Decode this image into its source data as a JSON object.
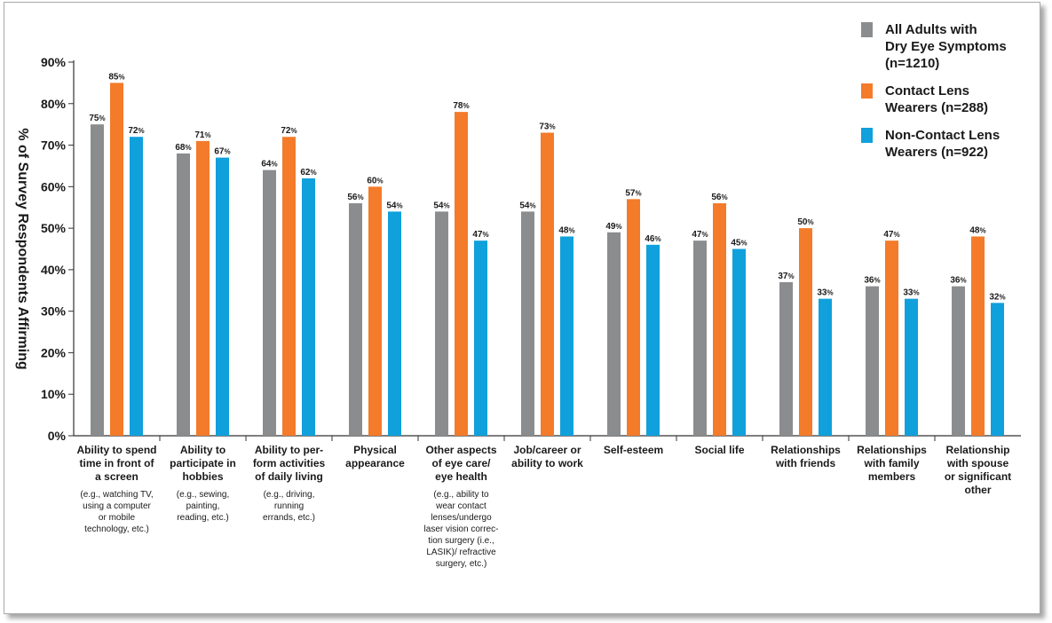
{
  "chart_data": {
    "type": "bar",
    "ylabel": "% of Survey Respondents Affirming",
    "ylim": [
      0,
      90
    ],
    "y_ticks": [
      "0%",
      "10%",
      "20%",
      "30%",
      "40%",
      "50%",
      "60%",
      "70%",
      "80%",
      "90%"
    ],
    "grid": false,
    "legend_position": "top-right",
    "categories": [
      {
        "label": [
          "Ability to spend",
          "time in front of",
          "a screen"
        ],
        "note": [
          "(e.g., watching TV,",
          "using a computer",
          "or mobile",
          "technology, etc.)"
        ]
      },
      {
        "label": [
          "Ability to",
          "participate in",
          "hobbies"
        ],
        "note": [
          "(e.g., sewing,",
          "painting,",
          "reading, etc.)"
        ]
      },
      {
        "label": [
          "Ability to per-",
          "form activities",
          "of daily living"
        ],
        "note": [
          "(e.g., driving,",
          "running",
          "errands, etc.)"
        ]
      },
      {
        "label": [
          "Physical",
          "appearance"
        ],
        "note": []
      },
      {
        "label": [
          "Other aspects",
          "of eye care/",
          "eye health"
        ],
        "note": [
          "(e.g., ability to",
          "wear contact",
          "lenses/undergo",
          "laser vision correc-",
          "tion surgery (i.e.,",
          "LASIK)/ refractive",
          "surgery, etc.)"
        ]
      },
      {
        "label": [
          "Job/career or",
          "ability to work"
        ],
        "note": []
      },
      {
        "label": [
          "Self-esteem"
        ],
        "note": []
      },
      {
        "label": [
          "Social life"
        ],
        "note": []
      },
      {
        "label": [
          "Relationships",
          "with friends"
        ],
        "note": []
      },
      {
        "label": [
          "Relationships",
          "with family",
          "members"
        ],
        "note": []
      },
      {
        "label": [
          "Relationship",
          "with spouse",
          "or significant",
          "other"
        ],
        "note": []
      }
    ],
    "series": [
      {
        "name": [
          "All Adults with",
          "Dry Eye Symptoms",
          "(n=1210)"
        ],
        "color": "#8a8c8e",
        "values": [
          75,
          68,
          64,
          56,
          54,
          54,
          49,
          47,
          37,
          36,
          36
        ]
      },
      {
        "name": [
          "Contact Lens",
          "Wearers (n=288)"
        ],
        "color": "#f37b2a",
        "values": [
          85,
          71,
          72,
          60,
          78,
          73,
          57,
          56,
          50,
          47,
          48
        ]
      },
      {
        "name": [
          "Non-Contact Lens",
          "Wearers (n=922)"
        ],
        "color": "#10a0dc",
        "values": [
          72,
          67,
          62,
          54,
          47,
          48,
          46,
          45,
          33,
          33,
          32
        ]
      }
    ]
  }
}
